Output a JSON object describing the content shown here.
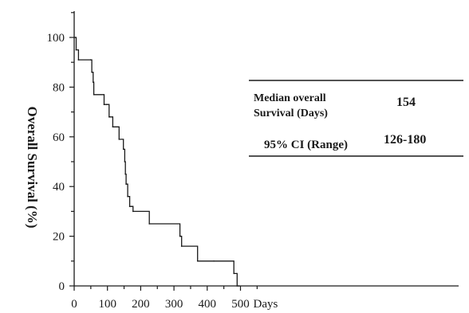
{
  "chart_data": {
    "type": "line",
    "ylabel": "Overall Survival (%)",
    "xlabel": "",
    "x_unit_label": "Days",
    "xlim": [
      0,
      540
    ],
    "ylim": [
      0,
      110
    ],
    "x_ticks": [
      0,
      100,
      200,
      300,
      400,
      500
    ],
    "y_ticks": [
      0,
      20,
      40,
      60,
      80,
      100
    ],
    "grid": false,
    "step": true,
    "series": [
      {
        "x": [
          0,
          4,
          6,
          13,
          50,
          53,
          57,
          59,
          90,
          98,
          105,
          107,
          116,
          135,
          148,
          152,
          154,
          156,
          158,
          161,
          167,
          173,
          177,
          226,
          318,
          321,
          323,
          371,
          420,
          480,
          490,
          496
        ],
        "y": [
          100,
          100,
          95,
          91,
          91,
          86,
          82,
          77,
          73,
          73,
          68,
          68,
          64,
          59,
          55,
          50,
          45,
          41,
          41,
          36,
          32,
          32,
          30,
          25,
          20,
          20,
          16,
          10,
          10,
          5,
          0,
          0
        ]
      }
    ],
    "summary_table": {
      "row1_label_line1": "Median overall",
      "row1_label_line2": "Survival (Days)",
      "row1_value": "154",
      "row2_label": "95% CI (Range)",
      "row2_value": "126-180"
    }
  }
}
